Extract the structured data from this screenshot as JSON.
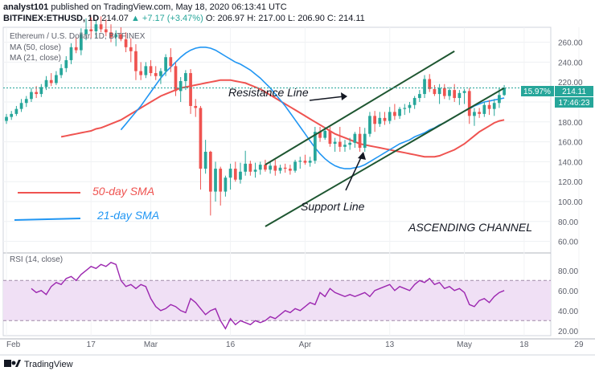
{
  "header": {
    "publisher": "analyst101",
    "published_text": "published on TradingView.com, May 18, 2020 06:13:41 UTC",
    "symbol_line": "BITFINEX:ETHUSD, 1D",
    "last": "214.07",
    "change": "▲ +7.17 (+3.47%)",
    "open": "O: 206.97",
    "high": "H: 217.00",
    "low": "L: 206.90",
    "close": "C: 214.11"
  },
  "overlay": {
    "pair_title": "Ethereum / U.S. Dollar, 1D, BITFINEX",
    "ma50_label": "MA (50, close)",
    "ma21_label": "MA (21, close)",
    "rsi_label": "RSI (14, close)"
  },
  "annotations": {
    "resistance": "Resistance Line",
    "support": "Support Line",
    "channel": "ASCENDING CHANNEL",
    "sma50": "50-day SMA",
    "sma21": "21-day SMA"
  },
  "price_badges": {
    "pct": "15.97%",
    "price": "214.11",
    "countdown": "17:46:23"
  },
  "footer": {
    "brand": "TradingView"
  },
  "colors": {
    "up": "#26a69a",
    "down": "#ef5350",
    "ma50": "#ef5350",
    "ma21": "#2196f3",
    "channel": "#1e5631",
    "rsi": "#9c27b0",
    "rsi_band": "#f0e0f5",
    "badge": "#26a69a"
  },
  "chart_data": {
    "type": "candlestick",
    "x_tick_labels": [
      "Feb",
      "17",
      "Mar",
      "16",
      "Apr",
      "13",
      "May",
      "18",
      "29"
    ],
    "price_axis": {
      "ylim": [
        50,
        275
      ],
      "ticks": [
        60,
        80,
        100,
        120,
        140,
        160,
        180,
        200,
        220,
        240,
        260
      ]
    },
    "rsi_axis": {
      "ylim": [
        15,
        95
      ],
      "ticks": [
        20.0,
        40.0,
        60.0,
        80.0
      ],
      "band": [
        30,
        70
      ]
    },
    "candles": [
      [
        181,
        188,
        178,
        185
      ],
      [
        185,
        191,
        182,
        188
      ],
      [
        188,
        196,
        186,
        193
      ],
      [
        193,
        203,
        190,
        199
      ],
      [
        199,
        206,
        195,
        203
      ],
      [
        203,
        214,
        200,
        210
      ],
      [
        210,
        216,
        204,
        208
      ],
      [
        208,
        218,
        205,
        215
      ],
      [
        215,
        226,
        212,
        222
      ],
      [
        222,
        229,
        216,
        219
      ],
      [
        219,
        231,
        217,
        227
      ],
      [
        227,
        238,
        224,
        234
      ],
      [
        234,
        246,
        230,
        242
      ],
      [
        242,
        259,
        238,
        255
      ],
      [
        255,
        265,
        249,
        252
      ],
      [
        252,
        274,
        247,
        268
      ],
      [
        268,
        284,
        262,
        273
      ],
      [
        273,
        285,
        264,
        271
      ],
      [
        271,
        282,
        264,
        278
      ],
      [
        278,
        286,
        270,
        273
      ],
      [
        273,
        283,
        266,
        270
      ],
      [
        270,
        278,
        260,
        265
      ],
      [
        265,
        272,
        256,
        268
      ],
      [
        268,
        275,
        261,
        263
      ],
      [
        263,
        270,
        250,
        255
      ],
      [
        255,
        264,
        240,
        251
      ],
      [
        251,
        258,
        222,
        231
      ],
      [
        231,
        240,
        222,
        227
      ],
      [
        227,
        240,
        224,
        236
      ],
      [
        236,
        242,
        226,
        229
      ],
      [
        229,
        236,
        222,
        226
      ],
      [
        226,
        234,
        218,
        231
      ],
      [
        231,
        248,
        226,
        245
      ],
      [
        245,
        254,
        230,
        236
      ],
      [
        236,
        240,
        206,
        211
      ],
      [
        211,
        225,
        200,
        221
      ],
      [
        221,
        232,
        212,
        229
      ],
      [
        229,
        233,
        188,
        196
      ],
      [
        196,
        203,
        185,
        194
      ],
      [
        194,
        196,
        112,
        133
      ],
      [
        133,
        162,
        128,
        150
      ],
      [
        150,
        151,
        86,
        110
      ],
      [
        110,
        140,
        100,
        133
      ],
      [
        133,
        135,
        96,
        110
      ],
      [
        110,
        126,
        105,
        124
      ],
      [
        124,
        138,
        112,
        133
      ],
      [
        133,
        140,
        120,
        122
      ],
      [
        122,
        139,
        118,
        130
      ],
      [
        130,
        151,
        126,
        138
      ],
      [
        138,
        141,
        126,
        130
      ],
      [
        130,
        139,
        124,
        132
      ],
      [
        132,
        140,
        127,
        137
      ],
      [
        137,
        142,
        130,
        132
      ],
      [
        132,
        140,
        128,
        136
      ],
      [
        136,
        142,
        126,
        131
      ],
      [
        131,
        137,
        128,
        134
      ],
      [
        134,
        138,
        129,
        133
      ],
      [
        133,
        137,
        127,
        131
      ],
      [
        131,
        142,
        129,
        140
      ],
      [
        140,
        145,
        133,
        141
      ],
      [
        141,
        147,
        137,
        139
      ],
      [
        139,
        145,
        135,
        141
      ],
      [
        141,
        175,
        138,
        170
      ],
      [
        170,
        175,
        160,
        164
      ],
      [
        164,
        175,
        162,
        171
      ],
      [
        171,
        175,
        155,
        158
      ],
      [
        158,
        164,
        150,
        160
      ],
      [
        160,
        175,
        150,
        155
      ],
      [
        155,
        162,
        150,
        157
      ],
      [
        157,
        164,
        152,
        159
      ],
      [
        159,
        170,
        154,
        168
      ],
      [
        168,
        175,
        150,
        154
      ],
      [
        154,
        174,
        150,
        168
      ],
      [
        168,
        190,
        165,
        186
      ],
      [
        186,
        191,
        170,
        178
      ],
      [
        178,
        190,
        175,
        184
      ],
      [
        184,
        190,
        177,
        181
      ],
      [
        181,
        195,
        178,
        190
      ],
      [
        190,
        198,
        182,
        186
      ],
      [
        186,
        195,
        183,
        193
      ],
      [
        193,
        198,
        187,
        194
      ],
      [
        194,
        200,
        189,
        197
      ],
      [
        197,
        206,
        193,
        204
      ],
      [
        204,
        212,
        200,
        208
      ],
      [
        208,
        227,
        204,
        223
      ],
      [
        223,
        228,
        210,
        213
      ],
      [
        213,
        217,
        206,
        208
      ],
      [
        208,
        218,
        198,
        214
      ],
      [
        214,
        218,
        203,
        206
      ],
      [
        206,
        215,
        202,
        212
      ],
      [
        212,
        218,
        200,
        204
      ],
      [
        204,
        212,
        197,
        209
      ],
      [
        209,
        213,
        198,
        211
      ],
      [
        211,
        214,
        178,
        186
      ],
      [
        186,
        194,
        176,
        190
      ],
      [
        190,
        194,
        184,
        188
      ],
      [
        188,
        200,
        185,
        197
      ],
      [
        197,
        202,
        187,
        193
      ],
      [
        193,
        203,
        186,
        199
      ],
      [
        199,
        214,
        194,
        207
      ],
      [
        207,
        217,
        206,
        214
      ]
    ],
    "ma50": [
      165,
      166,
      167,
      168,
      169,
      170,
      171,
      173,
      174,
      176,
      178,
      180,
      182,
      185,
      188,
      191,
      194,
      197,
      200,
      203,
      206,
      208,
      210,
      212,
      214,
      215,
      216,
      217,
      218,
      219,
      220,
      221,
      222,
      222,
      222,
      221,
      220,
      219,
      217,
      215,
      213,
      210,
      207,
      204,
      201,
      198,
      195,
      192,
      189,
      186,
      183,
      180,
      177,
      174,
      171,
      168,
      166,
      164,
      162,
      160,
      158,
      157,
      156,
      155,
      154,
      153,
      152,
      151,
      150,
      149,
      148,
      147,
      146,
      145,
      145,
      145,
      146,
      148,
      150,
      152,
      155,
      158,
      162,
      166,
      170,
      173,
      176,
      179,
      181,
      182
    ],
    "ma21": [
      172,
      178,
      184,
      190,
      196,
      203,
      210,
      217,
      224,
      230,
      235,
      240,
      245,
      249,
      252,
      254,
      255,
      255,
      254,
      252,
      249,
      246,
      243,
      240,
      238,
      235,
      232,
      228,
      224,
      219,
      214,
      208,
      202,
      196,
      189,
      182,
      175,
      168,
      161,
      154,
      148,
      143,
      139,
      136,
      134,
      133,
      133,
      134,
      135,
      137,
      140,
      143,
      146,
      149,
      152,
      155,
      158,
      160,
      162,
      165,
      167,
      169,
      172,
      174,
      177,
      179,
      182,
      185,
      188,
      191,
      193,
      196,
      198,
      200,
      201,
      202,
      203,
      204
    ],
    "rsi": [
      62,
      58,
      60,
      56,
      64,
      68,
      66,
      72,
      74,
      70,
      76,
      80,
      84,
      82,
      86,
      84,
      88,
      86,
      70,
      64,
      66,
      62,
      66,
      64,
      52,
      44,
      40,
      42,
      46,
      44,
      40,
      38,
      52,
      48,
      42,
      36,
      40,
      42,
      30,
      22,
      32,
      26,
      30,
      28,
      26,
      30,
      28,
      30,
      34,
      32,
      36,
      40,
      38,
      42,
      40,
      44,
      48,
      46,
      58,
      54,
      62,
      58,
      56,
      54,
      56,
      54,
      56,
      58,
      54,
      60,
      62,
      64,
      66,
      60,
      64,
      62,
      60,
      66,
      70,
      68,
      72,
      66,
      68,
      62,
      64,
      60,
      62,
      58,
      46,
      44,
      50,
      52,
      48,
      54,
      58,
      60
    ],
    "channel": {
      "resistance_from": {
        "candle": 52,
        "price": 137
      },
      "resistance_to": {
        "candle": 90,
        "price": 251
      },
      "support_from": {
        "candle": 52,
        "price": 75
      },
      "support_to": {
        "candle": 100,
        "price": 214
      }
    }
  }
}
